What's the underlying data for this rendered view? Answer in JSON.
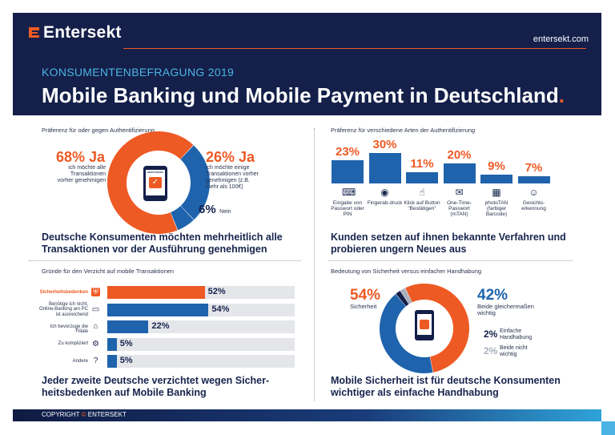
{
  "header": {
    "brand": "Entersekt",
    "website": "entersekt.com",
    "survey_label": "KONSUMENTENBEFRAGUNG 2019",
    "title": "Mobile Banking und Mobile Payment in Deutschland",
    "title_dot": "."
  },
  "panel1": {
    "subtitle": "Präferenz für oder gegen Authentifizierung",
    "yes_pct": "68% Ja",
    "yes_text": "ich möchte alle Transaktionen vorher genehmigen",
    "some_pct": "26% Ja",
    "some_text": "ich möchte einige Transaktionen vorher genehmigen (z.B. mehr als 100€)",
    "no_pct": "6%",
    "no_label": "Nein",
    "phone_text": "BESTÄTIGEN",
    "headline_1": "Deutsche Konsumenten möchten mehrheitlich alle",
    "headline_2": "Transaktionen vor der Ausführung genehmigen"
  },
  "panel2": {
    "subtitle": "Präferenz für verschiedene Arten der Authentifizierung",
    "headline_1": "Kunden setzen auf ihnen bekannte Verfahren und",
    "headline_2": "probieren ungern Neues aus"
  },
  "panel3": {
    "subtitle": "Gründe für den Verzicht auf mobile Transaktionen",
    "headline_1": "Jeder zweite Deutsche verzichtet wegen Sicher-",
    "headline_2": "heitsbedenken auf Mobile Banking"
  },
  "panel4": {
    "subtitle": "Bedeutung von Sicherheit versus einfacher Handhabung",
    "security_pct": "54%",
    "security_label": "Sicherheit",
    "equal_pct": "42%",
    "equal_label": "Beide gleichermaßen wichtig",
    "easy_pct": "2%",
    "easy_label": "Einfache Handhabung",
    "neither_pct": "2%",
    "neither_label": "Beide nicht wichtig",
    "headline_1": "Mobile Sicherheit ist für deutsche Konsumenten",
    "headline_2": "wichtiger als einfache Handhabung"
  },
  "footer": {
    "copyright": "COPYRIGHT",
    "copyright_symbol": "©",
    "company": "ENTERSEKT"
  },
  "chart_data": [
    {
      "type": "pie",
      "subtitle": "Präferenz für oder gegen Authentifizierung",
      "labels": [
        "Ja (alle Transaktionen)",
        "Ja (einige Transaktionen)",
        "Nein"
      ],
      "values": [
        68,
        26,
        6
      ],
      "colors": [
        "#ee5a24",
        "#1f63ad",
        "#1f63ad"
      ]
    },
    {
      "type": "bar",
      "subtitle": "Präferenz für verschiedene Arten der Authentifizierung",
      "categories": [
        "Eingabe von Passwort oder PIN",
        "Fingerab-druck",
        "Klick auf Button \"Bestätigen\"",
        "One-Time-Passwort (mTAN)",
        "photoTAN (farbiger Barcode)",
        "Gesichts-erkennung"
      ],
      "values": [
        23,
        30,
        11,
        20,
        9,
        7
      ],
      "value_labels": [
        "23%",
        "30%",
        "11%",
        "20%",
        "9%",
        "7%"
      ],
      "icons": [
        "keypad-icon",
        "fingerprint-icon",
        "tap-icon",
        "sms-otp-icon",
        "qr-code-icon",
        "face-icon"
      ],
      "ylim": [
        0,
        30
      ]
    },
    {
      "type": "bar",
      "orientation": "horizontal",
      "subtitle": "Gründe für den Verzicht auf mobile Transaktionen",
      "categories": [
        "Sicherheitsbedenken",
        "Benötige ich nicht, Online-Banking am PC ist ausreichend",
        "Ich bevorzuge die Filiale",
        "Zu kompliziert",
        "Andere"
      ],
      "values": [
        52,
        54,
        22,
        5,
        5
      ],
      "value_labels": [
        "52%",
        "54%",
        "22%",
        "5%",
        "5%"
      ],
      "icons": [
        "shield-icon",
        "computer-icon",
        "bank-icon",
        "gear-icon",
        "question-icon"
      ],
      "colors": [
        "#ee5a24",
        "#1f63ad",
        "#1f63ad",
        "#1f63ad",
        "#1f63ad"
      ],
      "xlim": [
        0,
        100
      ]
    },
    {
      "type": "pie",
      "subtitle": "Bedeutung von Sicherheit versus einfacher Handhabung",
      "labels": [
        "Sicherheit",
        "Beide gleichermaßen wichtig",
        "Einfache Handhabung",
        "Beide nicht wichtig"
      ],
      "values": [
        54,
        42,
        2,
        2
      ],
      "colors": [
        "#ee5a24",
        "#1f63ad",
        "#14204a",
        "#a9b0bd"
      ]
    }
  ]
}
